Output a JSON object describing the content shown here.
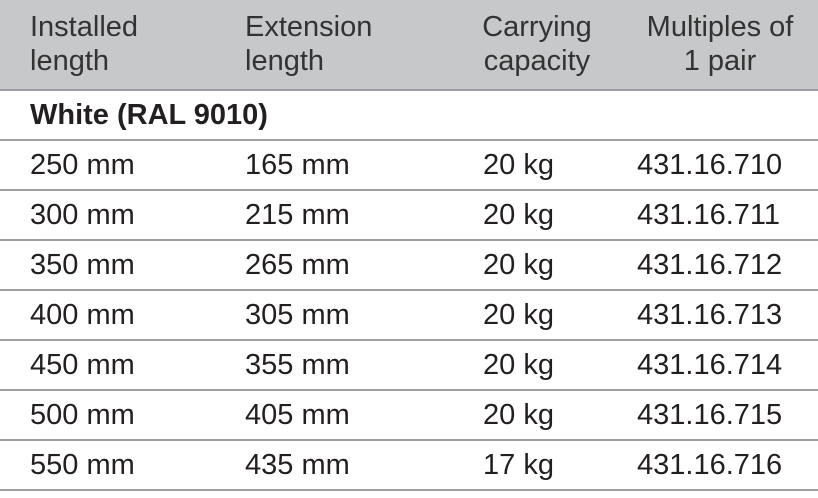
{
  "table": {
    "header": [
      [
        "Installed",
        "length"
      ],
      [
        "Extension",
        "length"
      ],
      [
        "Carrying",
        "capacity"
      ],
      [
        "Multiples of",
        "1 pair"
      ]
    ],
    "section": "White (RAL 9010)",
    "rows": [
      [
        "250 mm",
        "165 mm",
        "20 kg",
        "431.16.710"
      ],
      [
        "300 mm",
        "215 mm",
        "20 kg",
        "431.16.711"
      ],
      [
        "350 mm",
        "265 mm",
        "20 kg",
        "431.16.712"
      ],
      [
        "400 mm",
        "305 mm",
        "20 kg",
        "431.16.713"
      ],
      [
        "450 mm",
        "355 mm",
        "20 kg",
        "431.16.714"
      ],
      [
        "500 mm",
        "405 mm",
        "20 kg",
        "431.16.715"
      ],
      [
        "550 mm",
        "435 mm",
        "17 kg",
        "431.16.716"
      ]
    ]
  }
}
